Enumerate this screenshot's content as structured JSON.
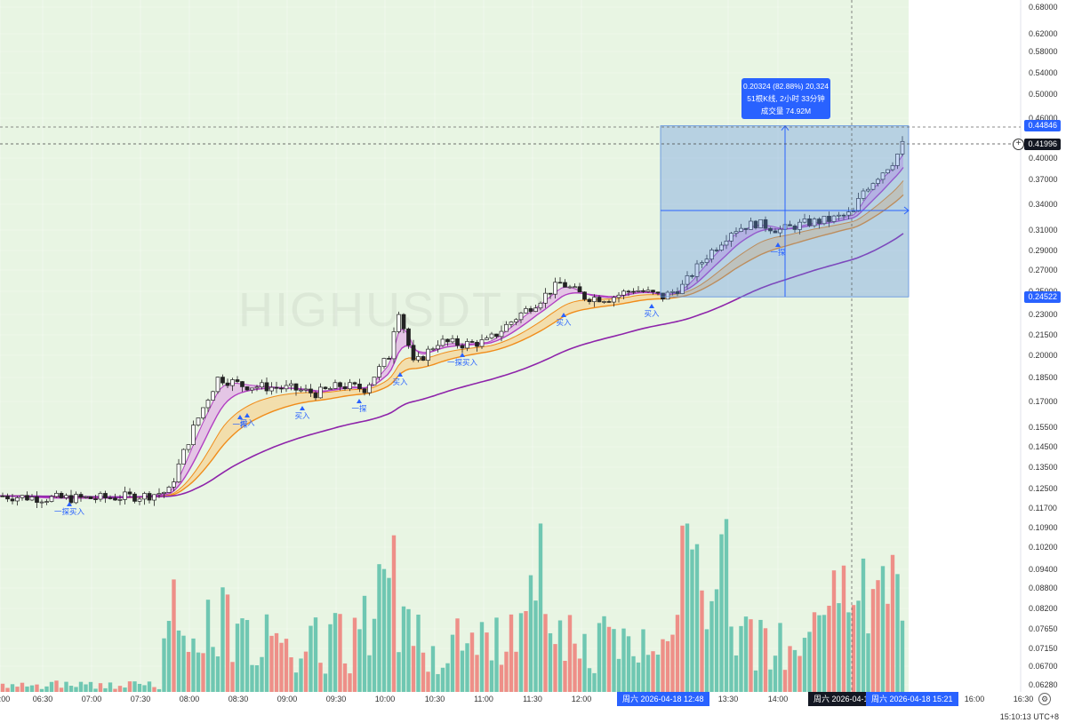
{
  "watermark": "HIGHUSDT.P",
  "measurement": {
    "line1": "0.20324 (82.88%) 20,324",
    "line2": "51根K线, 2小时 33分钟",
    "line3": "成交量 74.92M"
  },
  "price_labels": {
    "top": "0.44846",
    "current": "0.41996",
    "bottom": "0.24522"
  },
  "time_labels": {
    "start": "周六 2026-04-18   12:48",
    "crosshair": "周六 2026-04-18",
    "end": "周六 2026-04-18   15:21"
  },
  "signals": [
    {
      "text": "一探买入"
    },
    {
      "text": "买入"
    },
    {
      "text": "一探"
    },
    {
      "text": "买入"
    },
    {
      "text": "一探"
    },
    {
      "text": "买入"
    },
    {
      "text": "一探买入"
    },
    {
      "text": "一探"
    },
    {
      "text": "买入"
    },
    {
      "text": "买入"
    }
  ],
  "timezone_text": "15:10:13 UTC+8",
  "colors": {
    "bg_green": "#e8f5e3",
    "ribbon_pink": "#e3b4e6",
    "ribbon_orange": "#f6d59a",
    "ema_purple": "#8e24aa",
    "vol_up": "#6fc7b2",
    "vol_down": "#ee8f88",
    "measure_blue": "#2962ff"
  },
  "chart_data": {
    "type": "candlestick",
    "symbol": "HIGHUSDT.P",
    "y_axis_ticks": [
      "0.68000",
      "0.62000",
      "0.58000",
      "0.54000",
      "0.50000",
      "0.46000",
      "0.40000",
      "0.37000",
      "0.34000",
      "0.31000",
      "0.29000",
      "0.27000",
      "0.25000",
      "0.23000",
      "0.21500",
      "0.20000",
      "0.18500",
      "0.17000",
      "0.15500",
      "0.14500",
      "0.13500",
      "0.12500",
      "0.11700",
      "0.10900",
      "0.10200",
      "0.09400",
      "0.08800",
      "0.08200",
      "0.07650",
      "0.07150",
      "0.06700",
      "0.06280"
    ],
    "x_axis_ticks": [
      "06:00",
      "06:30",
      "07:00",
      "07:30",
      "08:00",
      "08:30",
      "09:00",
      "09:30",
      "10:00",
      "10:30",
      "11:00",
      "11:30",
      "12:00",
      "13:30",
      "14:00",
      "16:00",
      "16:30"
    ],
    "close_path": [
      [
        "06:00",
        0.122
      ],
      [
        "06:30",
        0.121
      ],
      [
        "07:00",
        0.121
      ],
      [
        "07:30",
        0.122
      ],
      [
        "07:45",
        0.124
      ],
      [
        "08:00",
        0.155
      ],
      [
        "08:15",
        0.185
      ],
      [
        "08:30",
        0.18
      ],
      [
        "09:00",
        0.178
      ],
      [
        "09:15",
        0.175
      ],
      [
        "09:30",
        0.18
      ],
      [
        "09:45",
        0.178
      ],
      [
        "10:00",
        0.2
      ],
      [
        "10:05",
        0.237
      ],
      [
        "10:15",
        0.193
      ],
      [
        "10:30",
        0.21
      ],
      [
        "10:45",
        0.208
      ],
      [
        "11:00",
        0.21
      ],
      [
        "11:15",
        0.225
      ],
      [
        "11:30",
        0.24
      ],
      [
        "11:45",
        0.258
      ],
      [
        "12:00",
        0.245
      ],
      [
        "12:15",
        0.244
      ],
      [
        "12:30",
        0.252
      ],
      [
        "12:48",
        0.245
      ],
      [
        "13:00",
        0.255
      ],
      [
        "13:15",
        0.285
      ],
      [
        "13:30",
        0.31
      ],
      [
        "13:45",
        0.318
      ],
      [
        "14:00",
        0.31
      ],
      [
        "14:15",
        0.318
      ],
      [
        "14:30",
        0.322
      ],
      [
        "14:45",
        0.33
      ],
      [
        "14:50",
        0.355
      ],
      [
        "15:00",
        0.375
      ],
      [
        "15:10",
        0.398
      ],
      [
        "15:21",
        0.449
      ]
    ],
    "current_price": 0.41996,
    "measure_range": {
      "from": 0.24522,
      "to": 0.44846,
      "change": 0.20324,
      "percent": 82.88,
      "bars": 51,
      "duration": "2小时 33分钟",
      "volume": "74.92M"
    }
  }
}
